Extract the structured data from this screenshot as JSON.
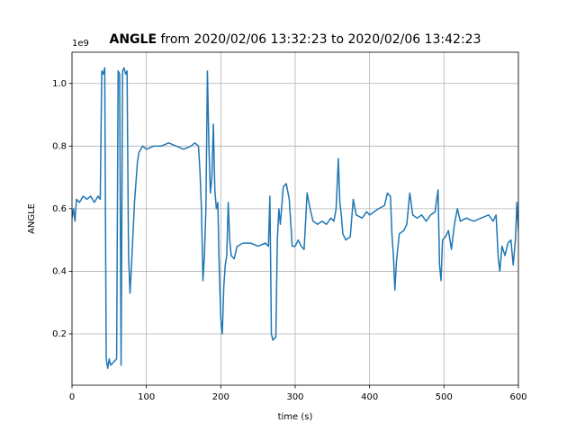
{
  "chart_data": {
    "type": "line",
    "title": "ANGLE",
    "subtitle": "from 2020/02/06 13:32:23 to 2020/02/06 13:42:23",
    "x_label": "time (s)",
    "y_label": "ANGLE",
    "y_offset_label": "1e9",
    "xlim": [
      0,
      600
    ],
    "ylim": [
      0.036,
      1.1
    ],
    "xticks": [
      0,
      100,
      200,
      300,
      400,
      500,
      600
    ],
    "yticks": [
      0.2,
      0.4,
      0.6,
      0.8,
      {
        "value": 1,
        "label": "1.0"
      }
    ],
    "grid": true,
    "series": [
      {
        "color": "#1f77b4",
        "x": [
          0,
          2,
          4,
          6,
          10,
          15,
          20,
          25,
          30,
          35,
          38,
          40,
          42,
          44,
          46,
          48,
          50,
          52,
          56,
          60,
          62,
          64,
          66,
          68,
          70,
          72,
          74,
          76,
          78,
          80,
          84,
          88,
          90,
          95,
          100,
          110,
          120,
          130,
          140,
          150,
          160,
          165,
          170,
          172,
          174,
          176,
          178,
          180,
          182,
          184,
          186,
          188,
          190,
          192,
          194,
          196,
          198,
          200,
          202,
          204,
          206,
          208,
          210,
          212,
          214,
          218,
          222,
          230,
          240,
          250,
          260,
          264,
          266,
          268,
          270,
          274,
          276,
          278,
          280,
          284,
          288,
          292,
          296,
          300,
          304,
          308,
          312,
          316,
          320,
          324,
          330,
          336,
          342,
          348,
          352,
          355,
          358,
          360,
          362,
          364,
          368,
          374,
          378,
          382,
          390,
          396,
          400,
          406,
          412,
          420,
          424,
          428,
          430,
          432,
          434,
          436,
          440,
          446,
          450,
          454,
          458,
          464,
          470,
          476,
          482,
          488,
          492,
          494,
          496,
          498,
          502,
          506,
          510,
          514,
          518,
          522,
          530,
          540,
          550,
          560,
          566,
          570,
          573,
          575,
          578,
          582,
          586,
          590,
          593,
          596,
          598,
          600
        ],
        "values": [
          0.57,
          0.6,
          0.56,
          0.63,
          0.62,
          0.64,
          0.63,
          0.64,
          0.62,
          0.64,
          0.63,
          1.04,
          1.03,
          1.05,
          0.12,
          0.09,
          0.12,
          0.1,
          0.11,
          0.12,
          1.04,
          1.03,
          0.1,
          1.04,
          1.05,
          1.03,
          1.04,
          0.45,
          0.33,
          0.42,
          0.62,
          0.75,
          0.78,
          0.8,
          0.79,
          0.8,
          0.8,
          0.81,
          0.8,
          0.79,
          0.8,
          0.81,
          0.8,
          0.72,
          0.6,
          0.37,
          0.45,
          0.6,
          1.04,
          0.8,
          0.65,
          0.7,
          0.87,
          0.66,
          0.6,
          0.62,
          0.4,
          0.25,
          0.2,
          0.35,
          0.42,
          0.45,
          0.62,
          0.5,
          0.45,
          0.44,
          0.48,
          0.49,
          0.49,
          0.48,
          0.49,
          0.48,
          0.64,
          0.2,
          0.18,
          0.19,
          0.5,
          0.6,
          0.55,
          0.67,
          0.68,
          0.63,
          0.48,
          0.48,
          0.5,
          0.48,
          0.47,
          0.65,
          0.6,
          0.56,
          0.55,
          0.56,
          0.55,
          0.57,
          0.56,
          0.6,
          0.76,
          0.62,
          0.58,
          0.52,
          0.5,
          0.51,
          0.63,
          0.58,
          0.57,
          0.59,
          0.58,
          0.59,
          0.6,
          0.61,
          0.65,
          0.64,
          0.52,
          0.45,
          0.34,
          0.43,
          0.52,
          0.53,
          0.55,
          0.65,
          0.58,
          0.57,
          0.58,
          0.56,
          0.58,
          0.59,
          0.66,
          0.42,
          0.37,
          0.5,
          0.51,
          0.53,
          0.47,
          0.55,
          0.6,
          0.56,
          0.57,
          0.56,
          0.57,
          0.58,
          0.56,
          0.58,
          0.44,
          0.4,
          0.48,
          0.45,
          0.49,
          0.5,
          0.42,
          0.5,
          0.62,
          0.53
        ]
      }
    ]
  }
}
